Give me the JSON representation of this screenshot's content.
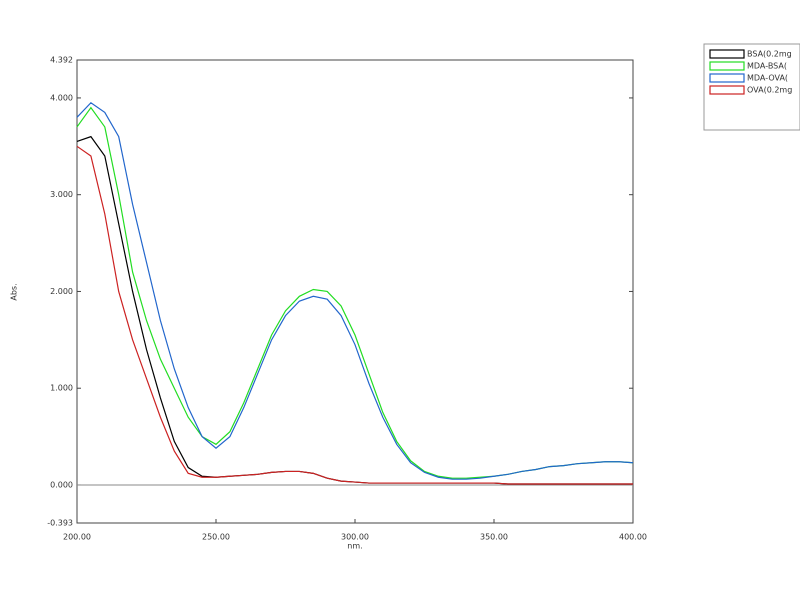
{
  "chart_data": {
    "type": "line",
    "xlabel": "nm.",
    "ylabel": "Abs.",
    "x": [
      200,
      205,
      210,
      215,
      220,
      225,
      230,
      235,
      240,
      245,
      250,
      255,
      260,
      265,
      270,
      275,
      280,
      285,
      290,
      295,
      300,
      305,
      310,
      315,
      320,
      325,
      330,
      335,
      340,
      345,
      350,
      355,
      360,
      365,
      370,
      375,
      380,
      385,
      390,
      395,
      400
    ],
    "series": [
      {
        "name": "BSA(0.2mg",
        "color": "#000000",
        "values": [
          3.55,
          3.6,
          3.4,
          2.7,
          2.0,
          1.4,
          0.9,
          0.45,
          0.18,
          0.09,
          0.08,
          0.09,
          0.1,
          0.11,
          0.13,
          0.14,
          0.14,
          0.12,
          0.07,
          0.04,
          0.03,
          0.02,
          0.02,
          0.02,
          0.02,
          0.02,
          0.02,
          0.02,
          0.02,
          0.02,
          0.02,
          0.01,
          0.01,
          0.01,
          0.01,
          0.01,
          0.01,
          0.01,
          0.01,
          0.01,
          0.01
        ]
      },
      {
        "name": "MDA-BSA(",
        "color": "#22dd22",
        "values": [
          3.7,
          3.9,
          3.7,
          3.0,
          2.2,
          1.7,
          1.3,
          1.0,
          0.7,
          0.5,
          0.42,
          0.55,
          0.85,
          1.2,
          1.55,
          1.8,
          1.95,
          2.02,
          2.0,
          1.85,
          1.55,
          1.15,
          0.75,
          0.45,
          0.25,
          0.14,
          0.09,
          0.07,
          0.07,
          0.08,
          0.09,
          0.11,
          0.14,
          0.16,
          0.19,
          0.2,
          0.22,
          0.23,
          0.24,
          0.24,
          0.23
        ]
      },
      {
        "name": "MDA-OVA(",
        "color": "#2266cc",
        "values": [
          3.8,
          3.95,
          3.85,
          3.6,
          2.9,
          2.3,
          1.7,
          1.2,
          0.8,
          0.5,
          0.38,
          0.5,
          0.8,
          1.15,
          1.5,
          1.75,
          1.9,
          1.95,
          1.92,
          1.75,
          1.45,
          1.05,
          0.7,
          0.42,
          0.23,
          0.13,
          0.08,
          0.06,
          0.06,
          0.07,
          0.09,
          0.11,
          0.14,
          0.16,
          0.19,
          0.2,
          0.22,
          0.23,
          0.24,
          0.24,
          0.23
        ]
      },
      {
        "name": "OVA(0.2mg",
        "color": "#cc2222",
        "values": [
          3.5,
          3.4,
          2.8,
          2.0,
          1.5,
          1.1,
          0.7,
          0.35,
          0.12,
          0.08,
          0.08,
          0.09,
          0.1,
          0.11,
          0.13,
          0.14,
          0.14,
          0.12,
          0.07,
          0.04,
          0.03,
          0.02,
          0.02,
          0.02,
          0.02,
          0.02,
          0.02,
          0.02,
          0.02,
          0.02,
          0.02,
          0.01,
          0.01,
          0.01,
          0.01,
          0.01,
          0.01,
          0.01,
          0.01,
          0.01,
          0.01
        ]
      }
    ],
    "xlim": [
      200,
      400
    ],
    "xticks": [
      {
        "value": 200,
        "label": "200.00"
      },
      {
        "value": 250,
        "label": "250.00"
      },
      {
        "value": 300,
        "label": "300.00"
      },
      {
        "value": 350,
        "label": "350.00"
      },
      {
        "value": 400,
        "label": "400.00"
      }
    ],
    "ylim": [
      -0.393,
      4.392
    ],
    "yticks": [
      {
        "value": -0.393,
        "label": "-0.393"
      },
      {
        "value": 0,
        "label": "0.000"
      },
      {
        "value": 1,
        "label": "1.000"
      },
      {
        "value": 2,
        "label": "2.000"
      },
      {
        "value": 3,
        "label": "3.000"
      },
      {
        "value": 4,
        "label": "4.000"
      },
      {
        "value": 4.392,
        "label": "4.392"
      }
    ],
    "legend": "top-right"
  }
}
